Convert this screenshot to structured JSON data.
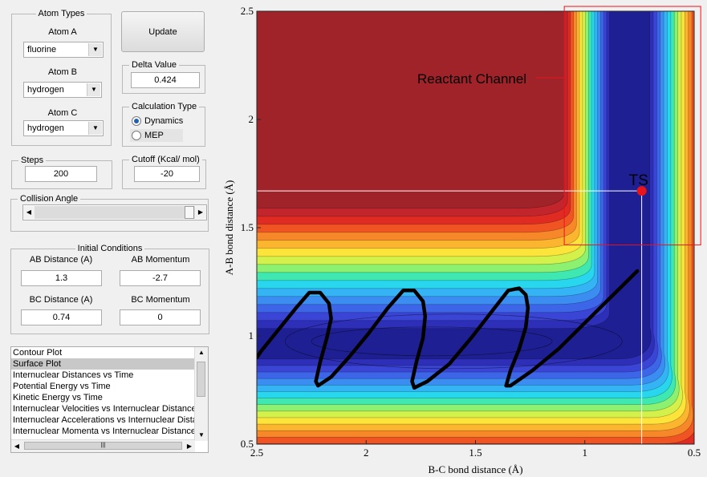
{
  "atom_types": {
    "title": "Atom Types",
    "atom_a_label": "Atom A",
    "atom_a_value": "fluorine",
    "atom_b_label": "Atom B",
    "atom_b_value": "hydrogen",
    "atom_c_label": "Atom C",
    "atom_c_value": "hydrogen"
  },
  "update_label": "Update",
  "delta": {
    "title": "Delta Value",
    "value": "0.424"
  },
  "calc_type": {
    "title": "Calculation Type",
    "options": [
      "Dynamics",
      "MEP"
    ],
    "selected": "Dynamics"
  },
  "steps": {
    "title": "Steps",
    "value": "200"
  },
  "cutoff": {
    "title": "Cutoff (Kcal/ mol)",
    "value": "-20"
  },
  "collision": {
    "title": "Collision Angle",
    "level": 0.95
  },
  "initial": {
    "title": "Initial Conditions",
    "ab_distance_label": "AB Distance (A)",
    "ab_distance": "1.3",
    "ab_momentum_label": "AB Momentum",
    "ab_momentum": "-2.7",
    "bc_distance_label": "BC Distance (A)",
    "bc_distance": "0.74",
    "bc_momentum_label": "BC Momentum",
    "bc_momentum": "0"
  },
  "plot_list": {
    "items": [
      "Contour Plot",
      "Surface Plot",
      "Internuclear Distances vs Time",
      "Potential Energy vs Time",
      "Kinetic Energy vs Time",
      "Internuclear Velocities vs Internuclear Distance",
      "Internuclear Accelerations vs Internuclear Distance",
      "Internuclear Momenta vs Internuclear Distance"
    ],
    "selected": "Surface Plot"
  },
  "chart_data": {
    "type": "heatmap",
    "xlabel": "B-C bond distance (Å)",
    "ylabel": "A-B bond distance (Å)",
    "xlim": [
      2.5,
      0.5
    ],
    "ylim": [
      0.5,
      2.5
    ],
    "x_ticks": [
      "2.5",
      "2",
      "1.5",
      "1",
      "0.5"
    ],
    "y_ticks": [
      "2.5",
      "2",
      "1.5",
      "1",
      "0.5"
    ],
    "colormap": "jet",
    "annotations": [
      {
        "text": "Reactant Channel",
        "region": {
          "x": [
            1.05,
            0.47
          ],
          "y": [
            2.5,
            1.42
          ]
        }
      },
      {
        "text": "TS",
        "point": {
          "x": 0.74,
          "y": 1.67
        }
      }
    ],
    "ts_point": {
      "x": 0.74,
      "y": 1.67,
      "color": "#e8141c"
    },
    "trajectory": [
      [
        0.76,
        1.3
      ],
      [
        0.88,
        1.18
      ],
      [
        1.0,
        1.06
      ],
      [
        1.12,
        0.94
      ],
      [
        1.24,
        0.84
      ],
      [
        1.34,
        0.77
      ],
      [
        1.36,
        0.77
      ],
      [
        1.34,
        0.84
      ],
      [
        1.3,
        0.94
      ],
      [
        1.27,
        1.04
      ],
      [
        1.26,
        1.13
      ],
      [
        1.27,
        1.19
      ],
      [
        1.3,
        1.22
      ],
      [
        1.35,
        1.21
      ],
      [
        1.42,
        1.12
      ],
      [
        1.52,
        0.99
      ],
      [
        1.62,
        0.87
      ],
      [
        1.72,
        0.79
      ],
      [
        1.78,
        0.76
      ],
      [
        1.79,
        0.79
      ],
      [
        1.77,
        0.88
      ],
      [
        1.74,
        0.99
      ],
      [
        1.73,
        1.09
      ],
      [
        1.74,
        1.16
      ],
      [
        1.78,
        1.21
      ],
      [
        1.83,
        1.21
      ],
      [
        1.9,
        1.13
      ],
      [
        1.99,
        1.01
      ],
      [
        2.08,
        0.9
      ],
      [
        2.16,
        0.81
      ],
      [
        2.22,
        0.77
      ],
      [
        2.23,
        0.79
      ],
      [
        2.21,
        0.88
      ],
      [
        2.18,
        0.99
      ],
      [
        2.16,
        1.08
      ],
      [
        2.17,
        1.15
      ],
      [
        2.21,
        1.2
      ],
      [
        2.26,
        1.2
      ],
      [
        2.32,
        1.13
      ],
      [
        2.4,
        1.03
      ],
      [
        2.48,
        0.93
      ],
      [
        2.5,
        0.9
      ]
    ],
    "ts_guides": true
  }
}
